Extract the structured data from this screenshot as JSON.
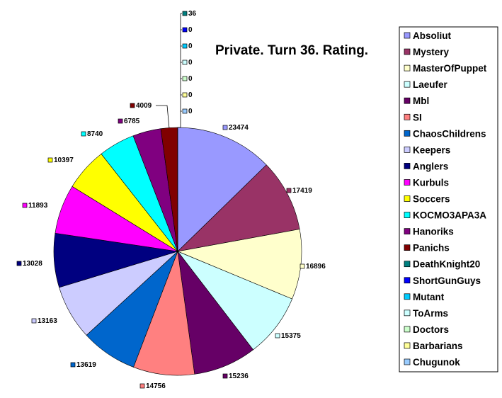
{
  "chart_data": {
    "type": "pie",
    "title": "Private. Turn 36. Rating.",
    "legend_position": "right",
    "slices": [
      {
        "name": "Absoliut",
        "value": 23474,
        "color": "#9999ff"
      },
      {
        "name": "Mystery",
        "value": 17419,
        "color": "#993366"
      },
      {
        "name": "MasterOfPuppet",
        "value": 16896,
        "color": "#ffffcc"
      },
      {
        "name": "Laeufer",
        "value": 15375,
        "color": "#ccffff"
      },
      {
        "name": "Mbl",
        "value": 15236,
        "color": "#660066"
      },
      {
        "name": "SI",
        "value": 14756,
        "color": "#ff8080"
      },
      {
        "name": "ChaosChildrens",
        "value": 13619,
        "color": "#0066cc"
      },
      {
        "name": "Keepers",
        "value": 13163,
        "color": "#ccccff"
      },
      {
        "name": "Anglers",
        "value": 13028,
        "color": "#000080"
      },
      {
        "name": "Kurbuls",
        "value": 11893,
        "color": "#ff00ff"
      },
      {
        "name": "Soccers",
        "value": 10397,
        "color": "#ffff00"
      },
      {
        "name": "KOCMO3APA3A",
        "value": 8740,
        "color": "#00ffff"
      },
      {
        "name": "Hanoriks",
        "value": 6785,
        "color": "#800080"
      },
      {
        "name": "Panichs",
        "value": 4009,
        "color": "#800000"
      },
      {
        "name": "DeathKnight20",
        "value": 36,
        "color": "#008080"
      },
      {
        "name": "ShortGunGuys",
        "value": 0,
        "color": "#0000ff"
      },
      {
        "name": "Mutant",
        "value": 0,
        "color": "#00ccff"
      },
      {
        "name": "ToArms",
        "value": 0,
        "color": "#ccffff"
      },
      {
        "name": "Doctors",
        "value": 0,
        "color": "#ccffcc"
      },
      {
        "name": "Barbarians",
        "value": 0,
        "color": "#ffff99"
      },
      {
        "name": "Chugunok",
        "value": 0,
        "color": "#99ccff"
      }
    ]
  }
}
